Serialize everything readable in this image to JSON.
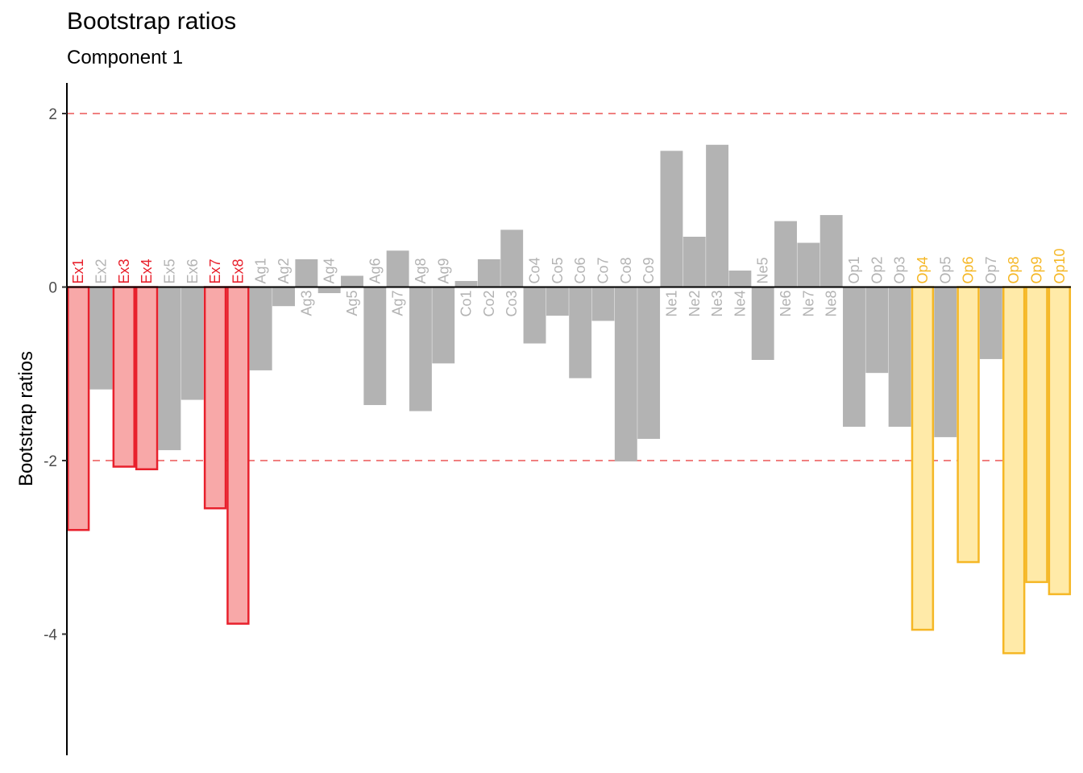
{
  "chart_data": {
    "type": "bar",
    "title": "Bootstrap ratios",
    "subtitle": "Component 1",
    "xlabel": "",
    "ylabel": "Bootstrap ratios",
    "ylim": [
      -5.4,
      2.35
    ],
    "yticks": [
      2,
      0,
      -2,
      -4
    ],
    "ytick_labels": [
      "2",
      "0",
      "-2",
      "-4"
    ],
    "thresholds": [
      2,
      -2
    ],
    "grid": false,
    "colors": {
      "significant_Ex_fill": "#f8a8a8",
      "significant_Ex_stroke": "#e8202c",
      "significant_Ex_label": "#e8202c",
      "significant_Op_fill": "#ffeaa8",
      "significant_Op_stroke": "#f5b725",
      "significant_Op_label": "#f5b725",
      "nonsignificant": "#b3b3b3",
      "threshold_line": "#f08080"
    },
    "categories": [
      "Ex1",
      "Ex2",
      "Ex3",
      "Ex4",
      "Ex5",
      "Ex6",
      "Ex7",
      "Ex8",
      "Ag1",
      "Ag2",
      "Ag3",
      "Ag4",
      "Ag5",
      "Ag6",
      "Ag7",
      "Ag8",
      "Ag9",
      "Co1",
      "Co2",
      "Co3",
      "Co4",
      "Co5",
      "Co6",
      "Co7",
      "Co8",
      "Co9",
      "Ne1",
      "Ne2",
      "Ne3",
      "Ne4",
      "Ne5",
      "Ne6",
      "Ne7",
      "Ne8",
      "Op1",
      "Op2",
      "Op3",
      "Op4",
      "Op5",
      "Op6",
      "Op7",
      "Op8",
      "Op9",
      "Op10"
    ],
    "values": [
      -2.8,
      -1.18,
      -2.07,
      -2.1,
      -1.88,
      -1.3,
      -2.55,
      -3.88,
      -0.96,
      -0.22,
      0.32,
      -0.07,
      0.13,
      -1.36,
      0.42,
      -1.43,
      -0.88,
      0.07,
      0.32,
      0.66,
      -0.65,
      -0.33,
      -1.05,
      -0.39,
      -2.01,
      -1.75,
      1.57,
      0.58,
      1.64,
      0.19,
      -0.84,
      0.76,
      0.51,
      0.83,
      -1.61,
      -0.99,
      -1.61,
      -3.95,
      -1.73,
      -3.17,
      -0.83,
      -4.22,
      -3.4,
      -3.54
    ],
    "groups": [
      "Ex",
      "Ex",
      "Ex",
      "Ex",
      "Ex",
      "Ex",
      "Ex",
      "Ex",
      "Ag",
      "Ag",
      "Ag",
      "Ag",
      "Ag",
      "Ag",
      "Ag",
      "Ag",
      "Ag",
      "Co",
      "Co",
      "Co",
      "Co",
      "Co",
      "Co",
      "Co",
      "Co",
      "Co",
      "Ne",
      "Ne",
      "Ne",
      "Ne",
      "Ne",
      "Ne",
      "Ne",
      "Ne",
      "Op",
      "Op",
      "Op",
      "Op",
      "Op",
      "Op",
      "Op",
      "Op",
      "Op",
      "Op"
    ],
    "significant": [
      true,
      false,
      true,
      true,
      false,
      false,
      true,
      true,
      false,
      false,
      false,
      false,
      false,
      false,
      false,
      false,
      false,
      false,
      false,
      false,
      false,
      false,
      false,
      false,
      false,
      false,
      false,
      false,
      false,
      false,
      false,
      false,
      false,
      false,
      false,
      false,
      false,
      true,
      false,
      true,
      false,
      true,
      true,
      true
    ]
  }
}
